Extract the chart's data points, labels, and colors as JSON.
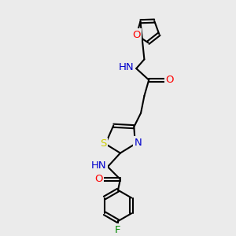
{
  "background_color": "#ebebeb",
  "bond_color": "#000000",
  "atom_colors": {
    "O": "#ff0000",
    "N": "#0000cc",
    "S": "#cccc00",
    "F": "#008800",
    "C": "#000000"
  },
  "font_size": 9.5,
  "lw": 1.5
}
